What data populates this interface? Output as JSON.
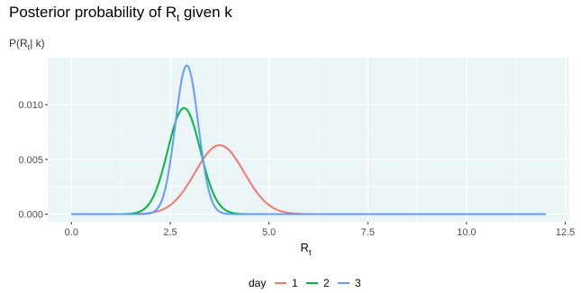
{
  "chart_data": {
    "type": "line",
    "title_main": "Posterior probability of R",
    "title_sub": "t",
    "title_end": " given k",
    "subtitle_main": "P(R",
    "subtitle_sub": "t",
    "subtitle_end": "| k)",
    "xlabel_main": "R",
    "xlabel_sub": "t",
    "xlim": [
      -0.6,
      12.6
    ],
    "ylim": [
      -0.0007,
      0.0143
    ],
    "x_ticks": [
      0.0,
      2.5,
      5.0,
      7.5,
      10.0,
      12.5
    ],
    "x_tick_labels": [
      "0.0",
      "2.5",
      "5.0",
      "7.5",
      "10.0",
      "12.5"
    ],
    "y_ticks": [
      0.0,
      0.005,
      0.01
    ],
    "y_tick_labels": [
      "0.000",
      "0.005",
      "0.010"
    ],
    "x_range": [
      0,
      12
    ],
    "grid": true,
    "legend_position": "bottom",
    "legend_title": "day",
    "panel_color": "#EBF4F7",
    "series": [
      {
        "name": "1",
        "color": "#F8766D",
        "peak_x": 3.75,
        "peak_y": 0.0063,
        "sd": 0.62
      },
      {
        "name": "2",
        "color": "#00BA38",
        "peak_x": 2.85,
        "peak_y": 0.0097,
        "sd": 0.41
      },
      {
        "name": "3",
        "color": "#619CFF",
        "peak_x": 2.92,
        "peak_y": 0.0136,
        "sd": 0.29
      }
    ]
  }
}
